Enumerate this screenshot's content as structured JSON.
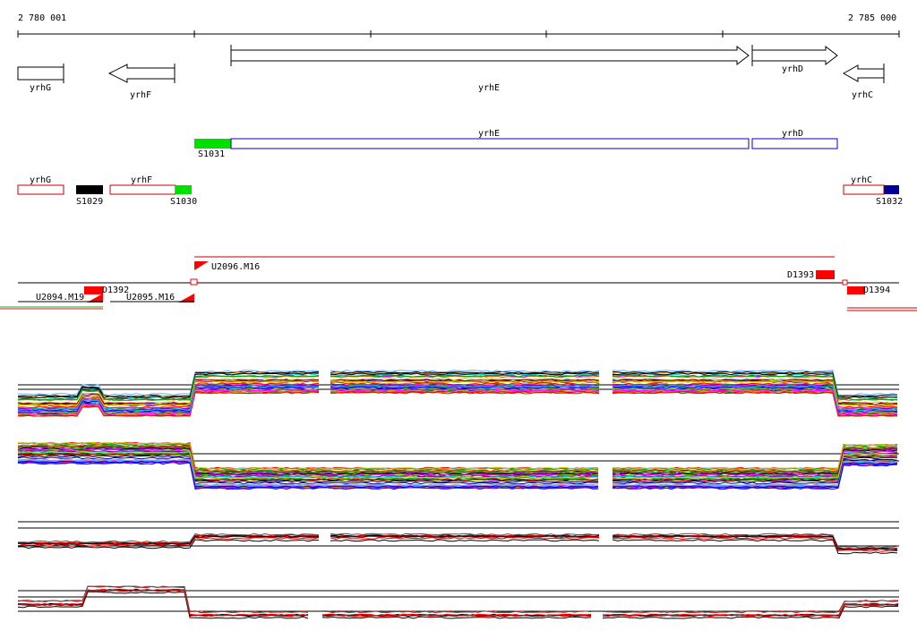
{
  "ruler": {
    "start_label": "2 780 001",
    "end_label": "2 785 000"
  },
  "gene_arrows": [
    {
      "label": "yrhG",
      "strand": "+"
    },
    {
      "label": "yrhF",
      "strand": "-"
    },
    {
      "label": "yrhE",
      "strand": "+"
    },
    {
      "label": "yrhD",
      "strand": "+"
    },
    {
      "label": "yrhC",
      "strand": "-"
    }
  ],
  "transcript_units": [
    {
      "label": "yrhE",
      "color": "#0000cc"
    },
    {
      "label": "yrhD",
      "color": "#0000cc"
    }
  ],
  "segment_labels": [
    "S1031",
    "S1029",
    "S1030",
    "S1032"
  ],
  "segments": [
    {
      "label": "yrhG",
      "color": "#cc0000"
    },
    {
      "label": "yrhF",
      "color": "#cc0000"
    },
    {
      "label": "yrhC",
      "color": "#cc0000"
    }
  ],
  "markers": [
    "U2096.M16",
    "D1393",
    "U2094.M19",
    "D1392",
    "U2095.M16",
    "D1394"
  ],
  "colors": {
    "start_segment": "#00e000",
    "black_segment": "#000000",
    "blue_segment": "#000099",
    "marker": "#ff0000"
  }
}
